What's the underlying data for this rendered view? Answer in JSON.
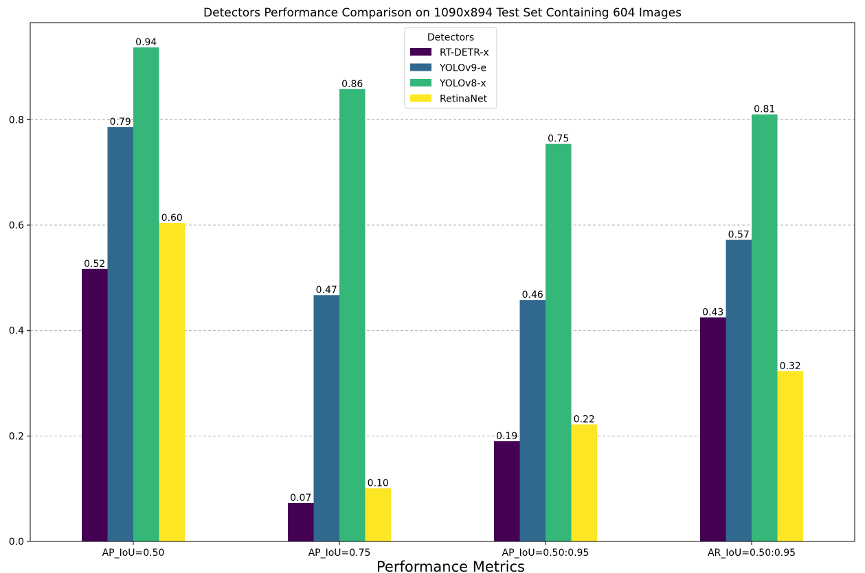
{
  "chart_data": {
    "type": "bar",
    "title": "Detectors Performance Comparison on 1090x894 Test Set Containing 604 Images",
    "xlabel": "Performance Metrics",
    "ylabel": "",
    "categories": [
      "AP_IoU=0.50",
      "AP_IoU=0.75",
      "AP_IoU=0.50:0.95",
      "AR_IoU=0.50:0.95"
    ],
    "series": [
      {
        "name": "RT-DETR-x",
        "color": "#440154",
        "values": [
          0.517,
          0.073,
          0.19,
          0.425
        ],
        "labels": [
          "0.52",
          "0.07",
          "0.19",
          "0.43"
        ]
      },
      {
        "name": "YOLOv9-e",
        "color": "#31688e",
        "values": [
          0.786,
          0.467,
          0.458,
          0.572
        ],
        "labels": [
          "0.79",
          "0.47",
          "0.46",
          "0.57"
        ]
      },
      {
        "name": "YOLOv8-x",
        "color": "#35b779",
        "values": [
          0.937,
          0.858,
          0.754,
          0.81
        ],
        "labels": [
          "0.94",
          "0.86",
          "0.75",
          "0.81"
        ]
      },
      {
        "name": "RetinaNet",
        "color": "#fde725",
        "values": [
          0.604,
          0.101,
          0.222,
          0.323
        ],
        "labels": [
          "0.60",
          "0.10",
          "0.22",
          "0.32"
        ]
      }
    ],
    "yticks": [
      0.0,
      0.2,
      0.4,
      0.6,
      0.8
    ],
    "ytick_labels": [
      "0.0",
      "0.2",
      "0.4",
      "0.6",
      "0.8"
    ],
    "ylim": [
      0,
      0.984
    ],
    "grid": "y-dashed",
    "legend": {
      "title": "Detectors",
      "placement": "upper center"
    }
  }
}
